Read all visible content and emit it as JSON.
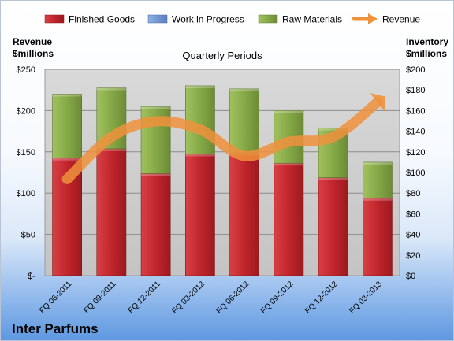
{
  "chart_data": {
    "type": "bar",
    "title": "Quarterly Periods",
    "company": "Inter Parfums",
    "left_axis_label": [
      "Revenue",
      "$millions"
    ],
    "right_axis_label": [
      "Inventory",
      "$millions"
    ],
    "categories": [
      "FQ 06-2011",
      "FQ 09-2011",
      "FQ 12-2011",
      "FQ 03-2012",
      "FQ 06-2012",
      "FQ 09-2012",
      "FQ 12-2012",
      "FQ 03-2013"
    ],
    "left_ticks": [
      "$-",
      "$50",
      "$100",
      "$150",
      "$200",
      "$250"
    ],
    "right_ticks": [
      "$0",
      "$20",
      "$40",
      "$60",
      "$80",
      "$100",
      "$120",
      "$140",
      "$160",
      "$180",
      "$200"
    ],
    "left_ylim": [
      0,
      250
    ],
    "right_ylim": [
      0,
      200
    ],
    "series": [
      {
        "name": "Finished Goods",
        "axis": "right",
        "color": "#c0262c",
        "values": [
          114,
          123,
          99,
          118,
          119,
          109,
          95,
          75
        ]
      },
      {
        "name": "Work in Progress",
        "axis": "right",
        "color": "#6f93cf",
        "values": [
          0,
          0,
          0,
          0,
          0,
          0,
          0,
          0
        ]
      },
      {
        "name": "Raw Materials",
        "axis": "right",
        "color": "#8db04a",
        "values": [
          62,
          59,
          65,
          66,
          62,
          51,
          48,
          35
        ]
      },
      {
        "name": "Revenue",
        "axis": "left",
        "type": "line",
        "color": "#f0913c",
        "values": [
          117,
          168,
          187,
          177,
          145,
          162,
          168,
          210
        ]
      }
    ],
    "legend_position": "top",
    "grid": true
  }
}
